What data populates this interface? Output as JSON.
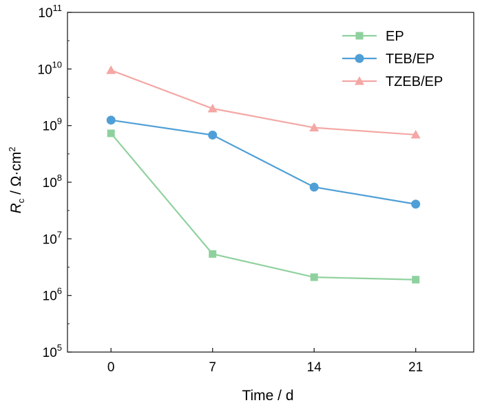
{
  "chart_data": {
    "type": "line",
    "x": [
      0,
      7,
      14,
      21
    ],
    "xlim": [
      -3,
      25
    ],
    "xticks": [
      0,
      7,
      14,
      21
    ],
    "xlabel": "Time / d",
    "ylabel": "R_c / Ω·cm^2",
    "ylabel_parts": {
      "symbol": "R",
      "subscript": "c",
      "unit": " / Ω·cm",
      "exponent": "2"
    },
    "yscale": "log",
    "ylim": [
      100000,
      100000000000
    ],
    "yticks": [
      {
        "value": 100000,
        "base": "10",
        "exp": "5"
      },
      {
        "value": 1000000,
        "base": "10",
        "exp": "6"
      },
      {
        "value": 10000000,
        "base": "10",
        "exp": "7"
      },
      {
        "value": 100000000,
        "base": "10",
        "exp": "8"
      },
      {
        "value": 1000000000,
        "base": "10",
        "exp": "9"
      },
      {
        "value": 10000000000,
        "base": "10",
        "exp": "10"
      },
      {
        "value": 100000000000,
        "base": "10",
        "exp": "11"
      }
    ],
    "grid": false,
    "legend_position": "top-right",
    "series": [
      {
        "name": "EP",
        "marker": "square",
        "color": "#8fd19e",
        "values": [
          730000000,
          5400000,
          2100000,
          1900000
        ]
      },
      {
        "name": "TEB/EP",
        "marker": "circle",
        "color": "#4f9fd6",
        "values": [
          1250000000,
          680000000,
          82000000,
          41000000
        ]
      },
      {
        "name": "TZEB/EP",
        "marker": "triangle",
        "color": "#f4a7a4",
        "values": [
          9500000000,
          2000000000,
          920000000,
          690000000
        ]
      }
    ]
  }
}
